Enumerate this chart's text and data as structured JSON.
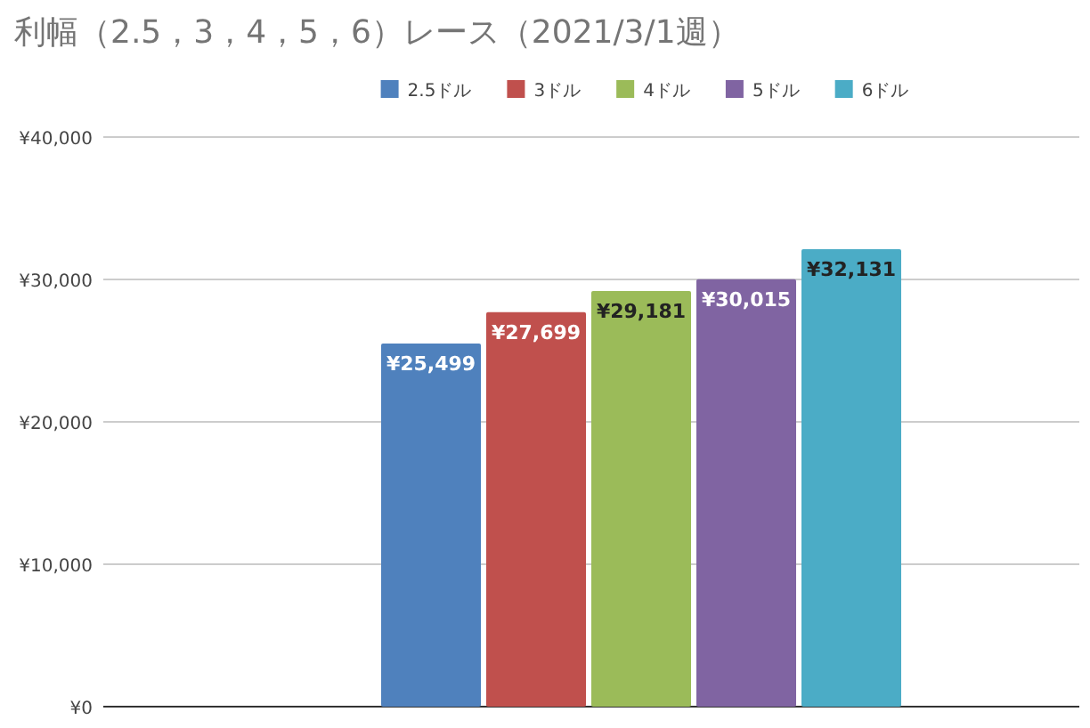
{
  "chart_data": {
    "type": "bar",
    "title": "利幅（2.5，3，4，5，6）レース（2021/3/1週）",
    "categories": [
      null
    ],
    "series": [
      {
        "name": "2.5ドル",
        "color": "#4f81bd",
        "values": [
          25499
        ],
        "value_labels": [
          "¥25,499"
        ]
      },
      {
        "name": "3ドル",
        "color": "#c0504d",
        "values": [
          27699
        ],
        "value_labels": [
          "¥27,699"
        ]
      },
      {
        "name": "4ドル",
        "color": "#9bbb59",
        "values": [
          29181
        ],
        "value_labels": [
          "¥29,181"
        ]
      },
      {
        "name": "5ドル",
        "color": "#8064a2",
        "values": [
          30015
        ],
        "value_labels": [
          "¥30,015"
        ]
      },
      {
        "name": "6ドル",
        "color": "#4bacc6",
        "values": [
          32131
        ],
        "value_labels": [
          "¥32,131"
        ]
      }
    ],
    "ylim": [
      0,
      40000
    ],
    "yticks": [
      {
        "value": 0,
        "label": "¥0"
      },
      {
        "value": 10000,
        "label": "¥10,000"
      },
      {
        "value": 20000,
        "label": "¥20,000"
      },
      {
        "value": 30000,
        "label": "¥30,000"
      },
      {
        "value": 40000,
        "label": "¥40,000"
      }
    ],
    "grid": "y",
    "legend": "top"
  }
}
